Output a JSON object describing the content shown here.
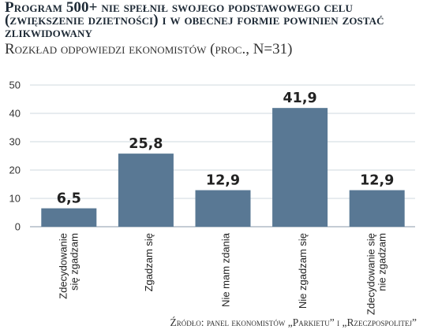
{
  "header": {
    "title": "Program 500+ nie spełnił swojego podstawowego celu (zwiększenie dzietności) i w obecnej formie powinien zostać zlikwidowany",
    "subtitle": "Rozkład odpowiedzi ekonomistów (proc., N=31)"
  },
  "footer": {
    "source": "Źródło: panel ekonomistów „Parkietu” i „Rzeczpospolitej”"
  },
  "chart_data": {
    "type": "bar",
    "title": "Program 500+ nie spełnił swojego podstawowego celu (zwiększenie dzietności) i w obecnej formie powinien zostać zlikwidowany",
    "subtitle": "Rozkład odpowiedzi ekonomistów (proc., N=31)",
    "categories": [
      [
        "Zdecydowanie",
        "się zgadzam"
      ],
      [
        "Zgadzam się"
      ],
      [
        "Nie mam zdania"
      ],
      [
        "Nie zgadzam się"
      ],
      [
        "Zdecydowanie się",
        "nie zgadzam"
      ]
    ],
    "values": [
      6.5,
      25.8,
      12.9,
      41.9,
      12.9
    ],
    "value_labels": [
      "6,5",
      "25,8",
      "12,9",
      "41,9",
      "12,9"
    ],
    "yticks": [
      0,
      10,
      20,
      30,
      40,
      50
    ],
    "ylim": [
      0,
      50
    ],
    "grid": true,
    "bar_color": "#597894",
    "grid_color": "#cfd8df"
  }
}
